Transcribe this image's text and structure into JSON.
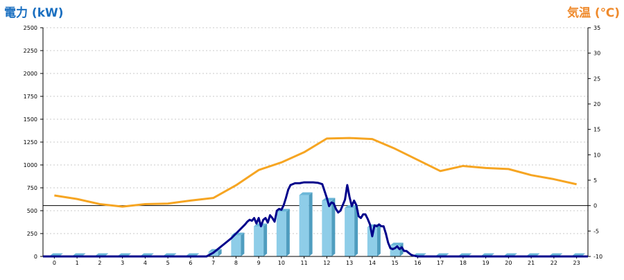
{
  "chart_data": {
    "type": "bar-line-combo",
    "left_axis_title": "電力 (kW)",
    "right_axis_title": "気温 (℃)",
    "categories": [
      "0",
      "1",
      "2",
      "3",
      "4",
      "5",
      "6",
      "7",
      "8",
      "9",
      "10",
      "11",
      "12",
      "13",
      "14",
      "15",
      "16",
      "17",
      "18",
      "19",
      "20",
      "21",
      "22",
      "23"
    ],
    "left_ylim": [
      0,
      2500
    ],
    "left_ticks": [
      0,
      250,
      500,
      750,
      1000,
      1250,
      1500,
      1750,
      2000,
      2250,
      2500
    ],
    "right_ylim": [
      -10,
      35
    ],
    "right_ticks": [
      -10,
      -5,
      0,
      5,
      10,
      15,
      20,
      25,
      30,
      35
    ],
    "grid": true,
    "bars": {
      "name": "",
      "values": [
        0,
        0,
        0,
        0,
        0,
        0,
        0,
        50,
        230,
        330,
        490,
        670,
        610,
        530,
        320,
        120,
        0,
        0,
        0,
        0,
        0,
        0,
        0,
        0
      ]
    },
    "power_line": {
      "name": "",
      "x": [
        6.7,
        7.0,
        7.3,
        7.6,
        7.8,
        8.0,
        8.2,
        8.4,
        8.5,
        8.6,
        8.7,
        8.8,
        8.9,
        9.0,
        9.1,
        9.2,
        9.3,
        9.4,
        9.5,
        9.6,
        9.7,
        9.8,
        9.9,
        10.0,
        10.1,
        10.2,
        10.3,
        10.4,
        10.6,
        10.8,
        11.0,
        11.2,
        11.4,
        11.6,
        11.8,
        12.0,
        12.1,
        12.2,
        12.3,
        12.4,
        12.5,
        12.6,
        12.7,
        12.8,
        12.9,
        13.0,
        13.1,
        13.2,
        13.3,
        13.4,
        13.5,
        13.6,
        13.7,
        13.8,
        13.9,
        14.0,
        14.1,
        14.2,
        14.3,
        14.4,
        14.5,
        14.6,
        14.7,
        14.8,
        14.9,
        15.0,
        15.1,
        15.2,
        15.3,
        15.4,
        15.5,
        15.6,
        15.7,
        15.8,
        16.0,
        16.3
      ],
      "values": [
        0,
        40,
        100,
        160,
        200,
        250,
        300,
        350,
        380,
        400,
        390,
        420,
        360,
        420,
        330,
        400,
        420,
        370,
        450,
        420,
        380,
        500,
        520,
        510,
        560,
        640,
        730,
        780,
        800,
        800,
        810,
        810,
        810,
        805,
        790,
        640,
        550,
        590,
        580,
        520,
        480,
        500,
        560,
        620,
        780,
        650,
        550,
        610,
        560,
        440,
        420,
        460,
        460,
        410,
        350,
        220,
        340,
        330,
        350,
        330,
        330,
        250,
        150,
        90,
        80,
        90,
        110,
        80,
        100,
        60,
        60,
        40,
        20,
        10,
        0,
        0
      ]
    },
    "temperature_line": {
      "name": "",
      "values": [
        2.0,
        1.3,
        0.3,
        -0.2,
        0.3,
        0.4,
        1.0,
        1.5,
        4.0,
        7.0,
        8.5,
        10.5,
        13.2,
        13.3,
        13.1,
        11.2,
        9.0,
        6.8,
        7.8,
        7.4,
        7.2,
        6.0,
        5.2,
        4.2
      ]
    },
    "colors": {
      "left_title": "#1a6fc0",
      "right_title": "#ef8a2c",
      "bar_front": "#8ecde8",
      "bar_side": "#4f9dbf",
      "bar_top": "#6bb7d8",
      "power_line": "#00008b",
      "temperature_line": "#f6a522",
      "grid": "#c8c8c8",
      "axis": "#000000"
    }
  }
}
